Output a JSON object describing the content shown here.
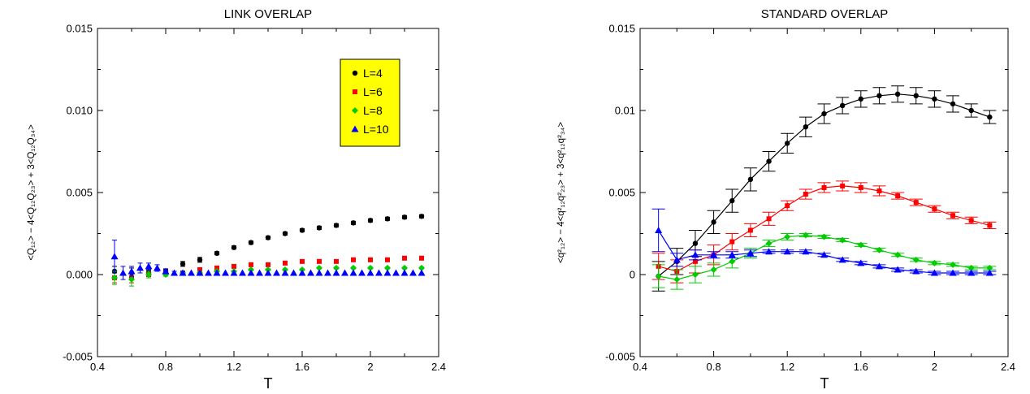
{
  "chart_data": [
    {
      "type": "scatter",
      "title": "LINK OVERLAP",
      "xlabel": "T",
      "ylabel": "<Q₁₂> − 4<Q₁₂Q₂₃> + 3<Q₁₂Q₃₄>",
      "xlim": [
        0.4,
        2.4
      ],
      "ylim": [
        -0.005,
        0.015
      ],
      "xticks": [
        "0.4",
        "0.8",
        "1.2",
        "1.6",
        "2",
        "2.4"
      ],
      "yticks": [
        "-0.005",
        "0.000",
        "0.005",
        "0.010",
        "0.015"
      ],
      "grid": false,
      "legend": {
        "placement": "top-right",
        "boxed": true,
        "fill": "#ffff00"
      },
      "series": [
        {
          "name": "L=4",
          "color": "#000000",
          "marker": "circle",
          "x": [
            0.5,
            0.6,
            0.7,
            0.8,
            0.9,
            1.0,
            1.1,
            1.2,
            1.3,
            1.4,
            1.5,
            1.6,
            1.7,
            1.8,
            1.9,
            2.0,
            2.1,
            2.2,
            2.3
          ],
          "y": [
            0.0002,
            0.0001,
            0.0001,
            0.0002,
            0.00065,
            0.0009,
            0.0013,
            0.00165,
            0.00195,
            0.00225,
            0.0025,
            0.0027,
            0.00285,
            0.003,
            0.00315,
            0.0033,
            0.0034,
            0.0035,
            0.00355
          ],
          "err": [
            0.0003,
            0.0003,
            0.00015,
            0.00015,
            0.00015,
            0.00015,
            0.0001,
            0.0001,
            0.0001,
            0.0001,
            0.0001,
            0.0001,
            0.0001,
            0.0001,
            0.0001,
            0.0001,
            0.0001,
            0.0001,
            0.0001
          ]
        },
        {
          "name": "L=6",
          "color": "#ff0000",
          "marker": "square",
          "x": [
            0.5,
            0.6,
            0.7,
            0.8,
            0.9,
            1.0,
            1.1,
            1.2,
            1.3,
            1.4,
            1.5,
            1.6,
            1.7,
            1.8,
            1.9,
            2.0,
            2.1,
            2.2,
            2.3
          ],
          "y": [
            -0.0002,
            -0.0002,
            0.0,
            0.0001,
            0.0001,
            0.0003,
            0.0004,
            0.0005,
            0.0006,
            0.0006,
            0.0007,
            0.0008,
            0.0008,
            0.0008,
            0.0009,
            0.0009,
            0.0009,
            0.001,
            0.001
          ],
          "err": [
            0.0003,
            0.0003,
            0.0002,
            0.0001,
            0.0001,
            0.0001,
            5e-05,
            5e-05,
            5e-05,
            5e-05,
            5e-05,
            5e-05,
            5e-05,
            5e-05,
            5e-05,
            5e-05,
            5e-05,
            5e-05,
            5e-05
          ]
        },
        {
          "name": "L=8",
          "color": "#00cc00",
          "marker": "diamond",
          "x": [
            0.5,
            0.6,
            0.7,
            0.8,
            0.9,
            1.0,
            1.1,
            1.2,
            1.3,
            1.4,
            1.5,
            1.6,
            1.7,
            1.8,
            1.9,
            2.0,
            2.1,
            2.2,
            2.3
          ],
          "y": [
            -0.0002,
            -0.0003,
            0.0,
            0.0,
            0.0001,
            0.0001,
            0.0002,
            0.0002,
            0.0003,
            0.0003,
            0.0003,
            0.0003,
            0.0004,
            0.0004,
            0.0004,
            0.0004,
            0.0004,
            0.0004,
            0.0004
          ],
          "err": [
            0.0004,
            0.0004,
            0.0002,
            0.0001,
            0.0001,
            0.0001,
            5e-05,
            5e-05,
            5e-05,
            5e-05,
            5e-05,
            5e-05,
            5e-05,
            5e-05,
            5e-05,
            5e-05,
            5e-05,
            5e-05,
            5e-05
          ]
        },
        {
          "name": "L=10",
          "color": "#0000ff",
          "marker": "triangle",
          "x": [
            0.5,
            0.55,
            0.6,
            0.65,
            0.7,
            0.75,
            0.8,
            0.85,
            0.9,
            0.95,
            1.0,
            1.05,
            1.1,
            1.15,
            1.2,
            1.25,
            1.3,
            1.35,
            1.4,
            1.45,
            1.5,
            1.55,
            1.6,
            1.65,
            1.7,
            1.75,
            1.8,
            1.85,
            1.9,
            1.95,
            2.0,
            2.05,
            2.1,
            2.15,
            2.2,
            2.25,
            2.3
          ],
          "y": [
            0.0011,
            0.0001,
            0.0002,
            0.0004,
            0.0005,
            0.0004,
            0.0002,
            0.0001,
            0.0001,
            0.0001,
            0.0001,
            0.0001,
            0.0001,
            0.0001,
            0.0001,
            0.0001,
            0.0001,
            0.0001,
            0.0001,
            0.0001,
            0.0001,
            0.0001,
            0.0001,
            0.0001,
            0.0001,
            0.0001,
            0.0001,
            0.0001,
            0.0001,
            0.0001,
            0.0001,
            0.0001,
            0.0001,
            0.0001,
            0.0001,
            0.0001,
            0.0001
          ],
          "err": [
            0.001,
            0.0004,
            0.0003,
            0.0003,
            0.0002,
            0.0002,
            0.0001,
            0.0001,
            0.0001,
            0,
            0,
            0,
            0,
            0,
            0,
            0,
            0,
            0,
            0,
            0,
            0,
            0,
            0,
            0,
            0,
            0,
            0,
            0,
            0,
            0,
            0,
            0,
            0,
            0,
            0,
            0,
            0
          ]
        }
      ]
    },
    {
      "type": "line",
      "title": "STANDARD OVERLAP",
      "xlabel": "T",
      "ylabel": "<q²₁₂> − 4<q²₁₂q²₂₃> + 3<q²₁₂q²₃₄>",
      "xlim": [
        0.4,
        2.4
      ],
      "ylim": [
        -0.005,
        0.015
      ],
      "xticks": [
        "0.4",
        "0.8",
        "1.2",
        "1.6",
        "2",
        "2.4"
      ],
      "yticks": [
        "-0.005",
        "0",
        "0.005",
        "0.01",
        "0.015"
      ],
      "grid": false,
      "legend": null,
      "series": [
        {
          "color": "#000000",
          "marker": "circle",
          "x": [
            0.5,
            0.6,
            0.7,
            0.8,
            0.9,
            1.0,
            1.1,
            1.2,
            1.3,
            1.4,
            1.5,
            1.6,
            1.7,
            1.8,
            1.9,
            2.0,
            2.1,
            2.2,
            2.3
          ],
          "y": [
            -0.0001,
            0.0008,
            0.0019,
            0.0032,
            0.0045,
            0.0058,
            0.0069,
            0.008,
            0.009,
            0.0098,
            0.0103,
            0.0107,
            0.0109,
            0.011,
            0.0109,
            0.0107,
            0.0104,
            0.01,
            0.0096
          ],
          "err": [
            0.0009,
            0.0008,
            0.0008,
            0.0007,
            0.0007,
            0.0007,
            0.0006,
            0.0006,
            0.0006,
            0.0006,
            0.0005,
            0.0005,
            0.0005,
            0.0005,
            0.0005,
            0.0005,
            0.0005,
            0.0004,
            0.0004
          ]
        },
        {
          "color": "#ff0000",
          "marker": "square",
          "x": [
            0.5,
            0.6,
            0.7,
            0.8,
            0.9,
            1.0,
            1.1,
            1.2,
            1.3,
            1.4,
            1.5,
            1.6,
            1.7,
            1.8,
            1.9,
            2.0,
            2.1,
            2.2,
            2.3
          ],
          "y": [
            0.0005,
            0.0002,
            0.0008,
            0.0012,
            0.002,
            0.0027,
            0.0034,
            0.0042,
            0.0049,
            0.0053,
            0.0054,
            0.0053,
            0.0051,
            0.0048,
            0.0044,
            0.004,
            0.0036,
            0.0033,
            0.003
          ],
          "err": [
            0.0008,
            0.0007,
            0.0007,
            0.0006,
            0.0005,
            0.0004,
            0.0004,
            0.0003,
            0.0003,
            0.0003,
            0.0003,
            0.0003,
            0.0003,
            0.0002,
            0.0002,
            0.0002,
            0.0002,
            0.0002,
            0.0002
          ]
        },
        {
          "color": "#00cc00",
          "marker": "diamond",
          "x": [
            0.5,
            0.6,
            0.7,
            0.8,
            0.9,
            1.0,
            1.1,
            1.2,
            1.3,
            1.4,
            1.5,
            1.6,
            1.7,
            1.8,
            1.9,
            2.0,
            2.1,
            2.2,
            2.3
          ],
          "y": [
            -0.0001,
            -0.0003,
            0.0,
            0.0003,
            0.0008,
            0.0013,
            0.0019,
            0.0023,
            0.0024,
            0.0023,
            0.0021,
            0.0018,
            0.0015,
            0.0012,
            0.0009,
            0.0007,
            0.0006,
            0.0004,
            0.0004
          ],
          "err": [
            0.0007,
            0.0006,
            0.0005,
            0.0004,
            0.0004,
            0.0003,
            0.0002,
            0.0002,
            0.0001,
            0.0001,
            0.0001,
            0.0001,
            0.0001,
            0.0001,
            0.0001,
            0.0001,
            0.0001,
            0.0001,
            0.0001
          ]
        },
        {
          "color": "#0000ff",
          "marker": "triangle",
          "x": [
            0.5,
            0.6,
            0.7,
            0.8,
            0.9,
            1.0,
            1.1,
            1.2,
            1.3,
            1.4,
            1.5,
            1.6,
            1.7,
            1.8,
            1.9,
            2.0,
            2.1,
            2.2,
            2.3
          ],
          "y": [
            0.0027,
            0.0009,
            0.0012,
            0.0012,
            0.0012,
            0.0013,
            0.0014,
            0.0014,
            0.0014,
            0.0012,
            0.0009,
            0.0007,
            0.0005,
            0.0003,
            0.0002,
            0.0001,
            0.0001,
            0.0001,
            0.0001
          ],
          "err": [
            0.0013,
            0.0004,
            0.0003,
            0.0002,
            0.0002,
            0.0002,
            0.0001,
            0.0001,
            0.0001,
            0.0001,
            0.0001,
            0.0001,
            0.0001,
            0.0001,
            0.0001,
            0.0001,
            0.0001,
            0.0001,
            0.0001
          ]
        }
      ]
    }
  ]
}
